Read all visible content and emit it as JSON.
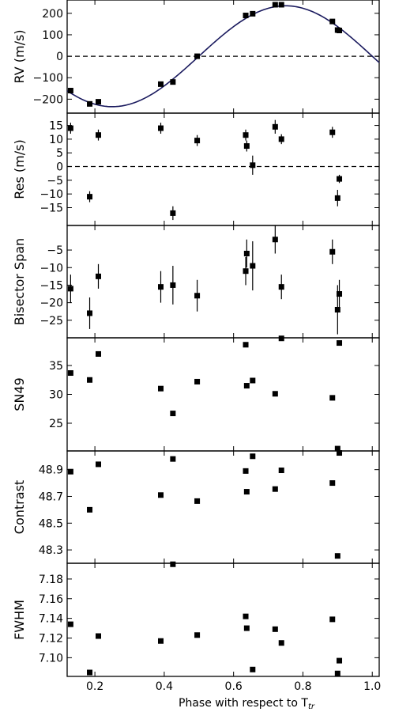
{
  "xlabel": "Phase with respect to T",
  "xlabel_sub": "tr",
  "chart_data": {
    "type": "scatter",
    "x_range": [
      0.12,
      1.02
    ],
    "x_ticks": [
      0.2,
      0.4,
      0.6,
      0.8,
      1.0
    ],
    "x_tick_labels": [
      "0.2",
      "0.4",
      "0.6",
      "0.8",
      "1.0"
    ],
    "grid": false,
    "panels": [
      {
        "key": "rv",
        "ylabel": "RV (m/s)",
        "ylim": [
          -265,
          262
        ],
        "yticks": [
          -200,
          -100,
          0,
          100,
          200
        ],
        "ytick_labels": [
          "−200",
          "−100",
          "0",
          "100",
          "200"
        ],
        "zero_line": true,
        "fit": {
          "amplitude": 235,
          "phase_offset": 0.5,
          "description": "sinusoidal fit"
        },
        "points": [
          {
            "x": 0.13,
            "y": -160
          },
          {
            "x": 0.185,
            "y": -222
          },
          {
            "x": 0.21,
            "y": -212
          },
          {
            "x": 0.39,
            "y": -130
          },
          {
            "x": 0.425,
            "y": -120
          },
          {
            "x": 0.495,
            "y": 0
          },
          {
            "x": 0.635,
            "y": 190
          },
          {
            "x": 0.655,
            "y": 198
          },
          {
            "x": 0.72,
            "y": 240
          },
          {
            "x": 0.738,
            "y": 240
          },
          {
            "x": 0.885,
            "y": 162
          },
          {
            "x": 0.9,
            "y": 122
          },
          {
            "x": 0.905,
            "y": 120
          }
        ]
      },
      {
        "key": "res",
        "ylabel": "Res (m/s)",
        "ylim": [
          -21.5,
          19.5
        ],
        "yticks": [
          -15,
          -10,
          -5,
          0,
          5,
          10,
          15
        ],
        "ytick_labels": [
          "−15",
          "−10",
          "−5",
          "0",
          "5",
          "10",
          "15"
        ],
        "zero_line": true,
        "points": [
          {
            "x": 0.13,
            "y": 14,
            "err": 2
          },
          {
            "x": 0.185,
            "y": -11,
            "err": 2
          },
          {
            "x": 0.21,
            "y": 11.5,
            "err": 2
          },
          {
            "x": 0.39,
            "y": 14,
            "err": 2
          },
          {
            "x": 0.425,
            "y": -17,
            "err": 2.5
          },
          {
            "x": 0.495,
            "y": 9.5,
            "err": 2
          },
          {
            "x": 0.635,
            "y": 11.5,
            "err": 2
          },
          {
            "x": 0.638,
            "y": 7.5,
            "err": 2
          },
          {
            "x": 0.655,
            "y": 0.5,
            "err": 3.5
          },
          {
            "x": 0.72,
            "y": 14.5,
            "err": 2.5
          },
          {
            "x": 0.738,
            "y": 10,
            "err": 1.8
          },
          {
            "x": 0.885,
            "y": 12.5,
            "err": 2
          },
          {
            "x": 0.9,
            "y": -11.5,
            "err": 3
          },
          {
            "x": 0.905,
            "y": -4.5,
            "err": 1.5
          }
        ]
      },
      {
        "key": "bis",
        "ylabel": "Bisector Span",
        "ylim": [
          -30,
          2
        ],
        "yticks": [
          -25,
          -20,
          -15,
          -10,
          -5
        ],
        "ytick_labels": [
          "−25",
          "−20",
          "−15",
          "−10",
          "−5"
        ],
        "points": [
          {
            "x": 0.13,
            "y": -16,
            "err": 4
          },
          {
            "x": 0.185,
            "y": -23,
            "err": 4.5
          },
          {
            "x": 0.21,
            "y": -12.5,
            "err": 3.5
          },
          {
            "x": 0.39,
            "y": -15.5,
            "err": 4.5
          },
          {
            "x": 0.425,
            "y": -15,
            "err": 5.5
          },
          {
            "x": 0.495,
            "y": -18,
            "err": 4.5
          },
          {
            "x": 0.635,
            "y": -11,
            "err": 4
          },
          {
            "x": 0.638,
            "y": -6,
            "err": 4
          },
          {
            "x": 0.655,
            "y": -9.5,
            "err": 7
          },
          {
            "x": 0.72,
            "y": -2,
            "err": 4
          },
          {
            "x": 0.738,
            "y": -15.5,
            "err": 3.5
          },
          {
            "x": 0.885,
            "y": -5.5,
            "err": 3.5
          },
          {
            "x": 0.9,
            "y": -22,
            "err": 7
          },
          {
            "x": 0.905,
            "y": -17.5,
            "err": 4
          }
        ]
      },
      {
        "key": "sn",
        "ylabel": "SN49",
        "ylim": [
          20.2,
          39.8
        ],
        "yticks": [
          25,
          30,
          35
        ],
        "ytick_labels": [
          "25",
          "30",
          "35"
        ],
        "points": [
          {
            "x": 0.13,
            "y": 33.7
          },
          {
            "x": 0.185,
            "y": 32.5
          },
          {
            "x": 0.21,
            "y": 37.0
          },
          {
            "x": 0.39,
            "y": 31.0
          },
          {
            "x": 0.425,
            "y": 26.7
          },
          {
            "x": 0.495,
            "y": 32.2
          },
          {
            "x": 0.635,
            "y": 38.6
          },
          {
            "x": 0.638,
            "y": 31.5
          },
          {
            "x": 0.655,
            "y": 32.4
          },
          {
            "x": 0.72,
            "y": 30.1
          },
          {
            "x": 0.738,
            "y": 39.7
          },
          {
            "x": 0.885,
            "y": 29.4
          },
          {
            "x": 0.9,
            "y": 20.6
          },
          {
            "x": 0.905,
            "y": 38.9
          }
        ]
      },
      {
        "key": "con",
        "ylabel": "Contrast",
        "ylim": [
          48.2,
          49.04
        ],
        "yticks": [
          48.3,
          48.5,
          48.7,
          48.9
        ],
        "ytick_labels": [
          "48.3",
          "48.5",
          "48.7",
          "48.9"
        ],
        "points": [
          {
            "x": 0.13,
            "y": 48.885
          },
          {
            "x": 0.185,
            "y": 48.6
          },
          {
            "x": 0.21,
            "y": 48.94
          },
          {
            "x": 0.39,
            "y": 48.71
          },
          {
            "x": 0.425,
            "y": 48.98
          },
          {
            "x": 0.495,
            "y": 48.665
          },
          {
            "x": 0.635,
            "y": 48.89
          },
          {
            "x": 0.638,
            "y": 48.735
          },
          {
            "x": 0.655,
            "y": 49.0
          },
          {
            "x": 0.72,
            "y": 48.755
          },
          {
            "x": 0.738,
            "y": 48.895
          },
          {
            "x": 0.885,
            "y": 48.8
          },
          {
            "x": 0.9,
            "y": 48.255
          },
          {
            "x": 0.905,
            "y": 49.025
          }
        ]
      },
      {
        "key": "fwhm",
        "ylabel": "FWHM",
        "ylim": [
          7.081,
          7.196
        ],
        "yticks": [
          7.1,
          7.12,
          7.14,
          7.16,
          7.18
        ],
        "ytick_labels": [
          "7.10",
          "7.12",
          "7.14",
          "7.16",
          "7.18"
        ],
        "points": [
          {
            "x": 0.13,
            "y": 7.134
          },
          {
            "x": 0.185,
            "y": 7.085
          },
          {
            "x": 0.21,
            "y": 7.122
          },
          {
            "x": 0.39,
            "y": 7.117
          },
          {
            "x": 0.425,
            "y": 7.195
          },
          {
            "x": 0.495,
            "y": 7.123
          },
          {
            "x": 0.635,
            "y": 7.142
          },
          {
            "x": 0.638,
            "y": 7.13
          },
          {
            "x": 0.655,
            "y": 7.088
          },
          {
            "x": 0.72,
            "y": 7.129
          },
          {
            "x": 0.738,
            "y": 7.115
          },
          {
            "x": 0.885,
            "y": 7.139
          },
          {
            "x": 0.9,
            "y": 7.084
          },
          {
            "x": 0.905,
            "y": 7.097
          }
        ]
      }
    ]
  }
}
